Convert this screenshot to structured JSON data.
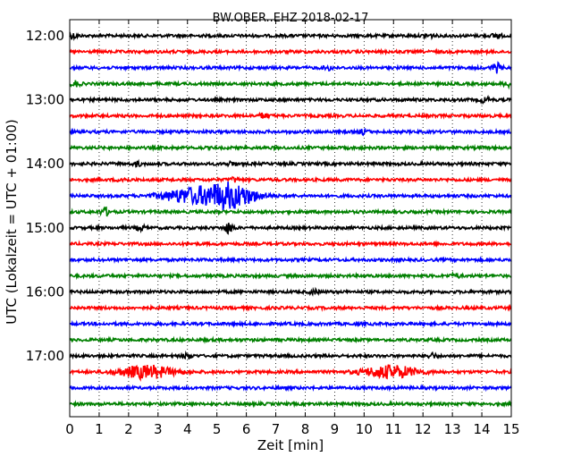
{
  "chart_data": {
    "type": "line",
    "title": "BW.OBER..EHZ 2018-02-17",
    "xlabel": "Zeit  [min]",
    "ylabel": "UTC (Lokalzeit = UTC + 01:00)",
    "xlim": [
      0,
      15
    ],
    "x_ticks": [
      "0",
      "1",
      "2",
      "3",
      "4",
      "5",
      "6",
      "7",
      "8",
      "9",
      "10",
      "11",
      "12",
      "13",
      "14",
      "15"
    ],
    "y_ticks": [
      "12:00",
      "13:00",
      "14:00",
      "15:00",
      "16:00",
      "17:00"
    ],
    "grid": "vertical dotted lines at each minute",
    "trace_interval_min": 15,
    "colors": [
      "#000000",
      "#ff0000",
      "#0000ff",
      "#008000"
    ],
    "series": [
      {
        "start": "12:00",
        "color": "#000000",
        "events": [
          [
            0.1,
            2.0
          ],
          [
            12.2,
            1.6
          ],
          [
            14.5,
            2.0
          ]
        ]
      },
      {
        "start": "12:15",
        "color": "#ff0000",
        "events": []
      },
      {
        "start": "12:30",
        "color": "#0000ff",
        "events": [
          [
            14.5,
            3.5
          ],
          [
            8.8,
            1.5
          ]
        ]
      },
      {
        "start": "12:45",
        "color": "#008000",
        "events": [
          [
            0.2,
            2.0
          ],
          [
            14.9,
            2.0
          ]
        ]
      },
      {
        "start": "13:00",
        "color": "#000000",
        "events": [
          [
            14.1,
            2.0
          ]
        ]
      },
      {
        "start": "13:15",
        "color": "#ff0000",
        "events": [
          [
            6.6,
            2.0
          ]
        ]
      },
      {
        "start": "13:30",
        "color": "#0000ff",
        "events": [
          [
            10.0,
            2.0
          ]
        ]
      },
      {
        "start": "13:45",
        "color": "#008000",
        "events": []
      },
      {
        "start": "14:00",
        "color": "#000000",
        "events": [
          [
            2.3,
            1.5
          ],
          [
            5.5,
            1.5
          ]
        ]
      },
      {
        "start": "14:15",
        "color": "#ff0000",
        "events": [
          [
            1.8,
            1.5
          ],
          [
            5.6,
            1.5
          ]
        ]
      },
      {
        "start": "14:30",
        "color": "#0000ff",
        "events": [
          [
            5.4,
            10.0
          ],
          [
            4.0,
            5.0
          ]
        ]
      },
      {
        "start": "14:45",
        "color": "#008000",
        "events": [
          [
            1.2,
            3.0
          ]
        ]
      },
      {
        "start": "15:00",
        "color": "#000000",
        "events": [
          [
            5.4,
            4.0
          ],
          [
            2.4,
            2.0
          ]
        ]
      },
      {
        "start": "15:15",
        "color": "#ff0000",
        "events": []
      },
      {
        "start": "15:30",
        "color": "#0000ff",
        "events": []
      },
      {
        "start": "15:45",
        "color": "#008000",
        "events": [
          [
            13.1,
            1.5
          ]
        ]
      },
      {
        "start": "16:00",
        "color": "#000000",
        "events": [
          [
            8.3,
            1.5
          ]
        ]
      },
      {
        "start": "16:15",
        "color": "#ff0000",
        "events": []
      },
      {
        "start": "16:30",
        "color": "#0000ff",
        "events": []
      },
      {
        "start": "16:45",
        "color": "#008000",
        "events": []
      },
      {
        "start": "17:00",
        "color": "#000000",
        "events": [
          [
            4.0,
            2.0
          ],
          [
            12.3,
            2.0
          ]
        ]
      },
      {
        "start": "17:15",
        "color": "#ff0000",
        "events": [
          [
            2.6,
            5.0
          ],
          [
            10.9,
            5.0
          ]
        ]
      },
      {
        "start": "17:30",
        "color": "#0000ff",
        "events": []
      },
      {
        "start": "17:45",
        "color": "#008000",
        "events": []
      }
    ]
  }
}
